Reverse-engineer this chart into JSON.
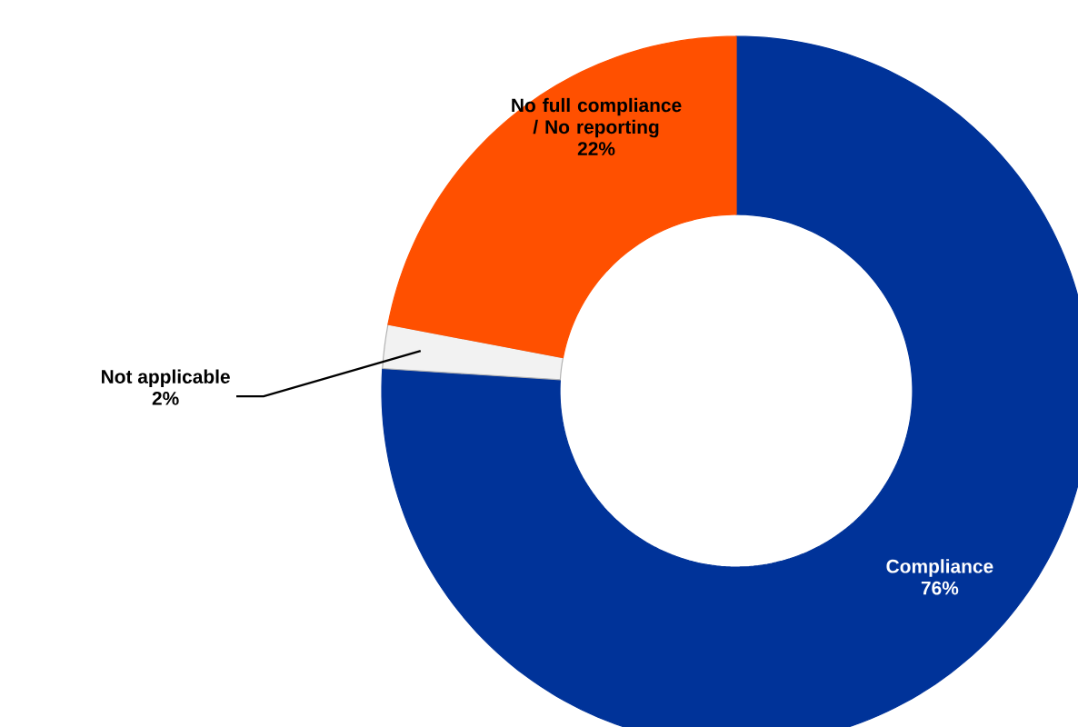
{
  "chart_data": {
    "type": "donut",
    "categories": [
      "Compliance",
      "Not applicable",
      "No full compliance / No reporting"
    ],
    "values": [
      76,
      2,
      22
    ],
    "colors": [
      "#003399",
      "#f2f2f2",
      "#ff5000"
    ],
    "value_labels": [
      "76%",
      "2%",
      "22%"
    ]
  }
}
